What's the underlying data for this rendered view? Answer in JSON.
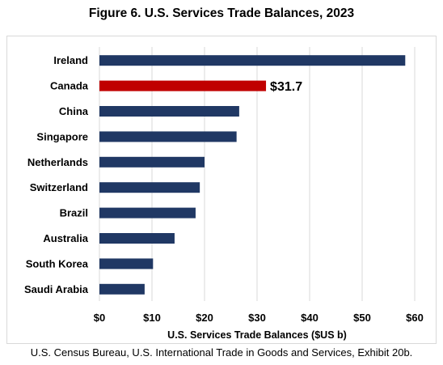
{
  "title": "Figure 6. U.S. Services Trade Balances, 2023",
  "source": "U.S. Census Bureau, U.S. International Trade in Goods and Services, Exhibit 20b.",
  "colors": {
    "bar": "#203864",
    "highlight": "#c00000",
    "grid": "#d9d9d9"
  },
  "chart_data": {
    "type": "bar",
    "orientation": "horizontal",
    "categories": [
      "Ireland",
      "Canada",
      "China",
      "Singapore",
      "Netherlands",
      "Switzerland",
      "Brazil",
      "Australia",
      "South Korea",
      "Saudi Arabia"
    ],
    "values": [
      58.2,
      31.7,
      26.6,
      26.1,
      20.0,
      19.1,
      18.3,
      14.3,
      10.2,
      8.6
    ],
    "highlight": "Canada",
    "data_labels": {
      "Canada": "$31.7"
    },
    "xlabel": "U.S. Services Trade Balances ($US b)",
    "ylabel": "",
    "xlim": [
      0,
      60
    ],
    "xticks": [
      0,
      10,
      20,
      30,
      40,
      50,
      60
    ],
    "xtick_labels": [
      "$0",
      "$10",
      "$20",
      "$30",
      "$40",
      "$50",
      "$60"
    ],
    "grid": true
  }
}
